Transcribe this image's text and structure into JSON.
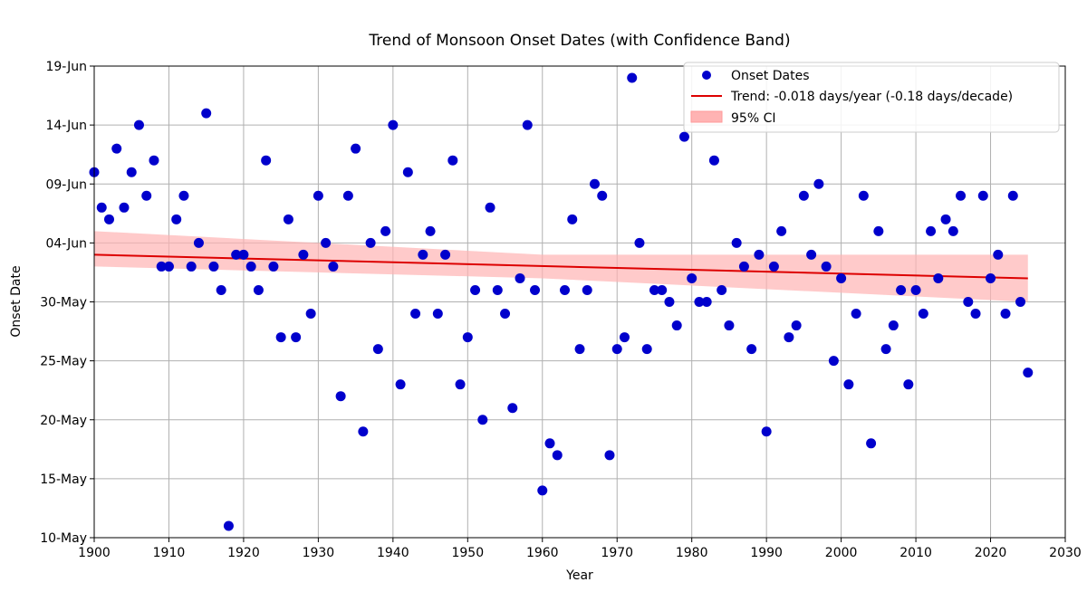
{
  "chart_data": {
    "type": "scatter",
    "title": "Trend of Monsoon Onset Dates (with Confidence Band)",
    "xlabel": "Year",
    "ylabel": "Onset Date",
    "xlim": [
      1900,
      2030
    ],
    "ylim": [
      "10-May",
      "19-Jun"
    ],
    "xticks": [
      "1900",
      "1910",
      "1920",
      "1930",
      "1940",
      "1950",
      "1960",
      "1970",
      "1980",
      "1990",
      "2000",
      "2010",
      "2020",
      "2030"
    ],
    "yticks": [
      "10-May",
      "15-May",
      "20-May",
      "25-May",
      "30-May",
      "04-Jun",
      "09-Jun",
      "14-Jun",
      "19-Jun"
    ],
    "grid": true,
    "legend_position": "top-right",
    "series": [
      {
        "name": "Onset Dates",
        "kind": "scatter",
        "color": "#0000cc",
        "points": [
          [
            1900,
            "10-Jun"
          ],
          [
            1901,
            "07-Jun"
          ],
          [
            1902,
            "06-Jun"
          ],
          [
            1903,
            "12-Jun"
          ],
          [
            1904,
            "07-Jun"
          ],
          [
            1905,
            "10-Jun"
          ],
          [
            1906,
            "14-Jun"
          ],
          [
            1907,
            "08-Jun"
          ],
          [
            1908,
            "11-Jun"
          ],
          [
            1909,
            "02-Jun"
          ],
          [
            1910,
            "02-Jun"
          ],
          [
            1911,
            "06-Jun"
          ],
          [
            1912,
            "08-Jun"
          ],
          [
            1913,
            "02-Jun"
          ],
          [
            1914,
            "04-Jun"
          ],
          [
            1915,
            "15-Jun"
          ],
          [
            1916,
            "02-Jun"
          ],
          [
            1917,
            "31-May"
          ],
          [
            1918,
            "11-May"
          ],
          [
            1919,
            "03-Jun"
          ],
          [
            1920,
            "03-Jun"
          ],
          [
            1921,
            "02-Jun"
          ],
          [
            1922,
            "31-May"
          ],
          [
            1923,
            "11-Jun"
          ],
          [
            1924,
            "02-Jun"
          ],
          [
            1925,
            "27-May"
          ],
          [
            1926,
            "06-Jun"
          ],
          [
            1927,
            "27-May"
          ],
          [
            1928,
            "03-Jun"
          ],
          [
            1929,
            "29-May"
          ],
          [
            1930,
            "08-Jun"
          ],
          [
            1931,
            "04-Jun"
          ],
          [
            1932,
            "02-Jun"
          ],
          [
            1933,
            "22-May"
          ],
          [
            1934,
            "08-Jun"
          ],
          [
            1935,
            "12-Jun"
          ],
          [
            1936,
            "19-May"
          ],
          [
            1937,
            "04-Jun"
          ],
          [
            1938,
            "26-May"
          ],
          [
            1939,
            "05-Jun"
          ],
          [
            1940,
            "14-Jun"
          ],
          [
            1941,
            "23-May"
          ],
          [
            1942,
            "10-Jun"
          ],
          [
            1943,
            "29-May"
          ],
          [
            1944,
            "03-Jun"
          ],
          [
            1945,
            "05-Jun"
          ],
          [
            1946,
            "29-May"
          ],
          [
            1947,
            "03-Jun"
          ],
          [
            1948,
            "11-Jun"
          ],
          [
            1949,
            "23-May"
          ],
          [
            1950,
            "27-May"
          ],
          [
            1951,
            "31-May"
          ],
          [
            1952,
            "20-May"
          ],
          [
            1953,
            "07-Jun"
          ],
          [
            1954,
            "31-May"
          ],
          [
            1955,
            "29-May"
          ],
          [
            1956,
            "21-May"
          ],
          [
            1957,
            "01-Jun"
          ],
          [
            1958,
            "14-Jun"
          ],
          [
            1959,
            "31-May"
          ],
          [
            1960,
            "14-May"
          ],
          [
            1961,
            "18-May"
          ],
          [
            1962,
            "17-May"
          ],
          [
            1963,
            "31-May"
          ],
          [
            1964,
            "06-Jun"
          ],
          [
            1965,
            "26-May"
          ],
          [
            1966,
            "31-May"
          ],
          [
            1967,
            "09-Jun"
          ],
          [
            1968,
            "08-Jun"
          ],
          [
            1969,
            "17-May"
          ],
          [
            1970,
            "26-May"
          ],
          [
            1971,
            "27-May"
          ],
          [
            1972,
            "18-Jun"
          ],
          [
            1973,
            "04-Jun"
          ],
          [
            1974,
            "26-May"
          ],
          [
            1975,
            "31-May"
          ],
          [
            1976,
            "31-May"
          ],
          [
            1977,
            "30-May"
          ],
          [
            1978,
            "28-May"
          ],
          [
            1979,
            "13-Jun"
          ],
          [
            1980,
            "01-Jun"
          ],
          [
            1981,
            "30-May"
          ],
          [
            1982,
            "30-May"
          ],
          [
            1983,
            "11-Jun"
          ],
          [
            1984,
            "31-May"
          ],
          [
            1985,
            "28-May"
          ],
          [
            1986,
            "04-Jun"
          ],
          [
            1987,
            "02-Jun"
          ],
          [
            1988,
            "26-May"
          ],
          [
            1989,
            "03-Jun"
          ],
          [
            1990,
            "19-May"
          ],
          [
            1991,
            "02-Jun"
          ],
          [
            1992,
            "05-Jun"
          ],
          [
            1993,
            "27-May"
          ],
          [
            1994,
            "28-May"
          ],
          [
            1995,
            "08-Jun"
          ],
          [
            1996,
            "03-Jun"
          ],
          [
            1997,
            "09-Jun"
          ],
          [
            1998,
            "02-Jun"
          ],
          [
            1999,
            "25-May"
          ],
          [
            2000,
            "01-Jun"
          ],
          [
            2001,
            "23-May"
          ],
          [
            2002,
            "29-May"
          ],
          [
            2003,
            "08-Jun"
          ],
          [
            2004,
            "18-May"
          ],
          [
            2005,
            "05-Jun"
          ],
          [
            2006,
            "26-May"
          ],
          [
            2007,
            "28-May"
          ],
          [
            2008,
            "31-May"
          ],
          [
            2009,
            "23-May"
          ],
          [
            2010,
            "31-May"
          ],
          [
            2011,
            "29-May"
          ],
          [
            2012,
            "05-Jun"
          ],
          [
            2013,
            "01-Jun"
          ],
          [
            2014,
            "06-Jun"
          ],
          [
            2015,
            "05-Jun"
          ],
          [
            2016,
            "08-Jun"
          ],
          [
            2017,
            "30-May"
          ],
          [
            2018,
            "29-May"
          ],
          [
            2019,
            "08-Jun"
          ],
          [
            2020,
            "01-Jun"
          ],
          [
            2021,
            "03-Jun"
          ],
          [
            2022,
            "29-May"
          ],
          [
            2023,
            "08-Jun"
          ],
          [
            2024,
            "30-May"
          ],
          [
            2025,
            "24-May"
          ]
        ]
      },
      {
        "name": "Trend: -0.018 days/year (-0.18 days/decade)",
        "kind": "line",
        "color": "#dd0000",
        "points": [
          [
            1900,
            "03-Jun"
          ],
          [
            2025,
            "01-Jun"
          ]
        ]
      },
      {
        "name": "95% CI",
        "kind": "band",
        "color": "#ffb3b3",
        "upper": [
          [
            1900,
            "05-Jun"
          ],
          [
            1960,
            "03-Jun"
          ],
          [
            2025,
            "03-Jun"
          ]
        ],
        "lower": [
          [
            1900,
            "02-Jun"
          ],
          [
            1960,
            "01-Jun"
          ],
          [
            2025,
            "30-May"
          ]
        ]
      }
    ]
  }
}
